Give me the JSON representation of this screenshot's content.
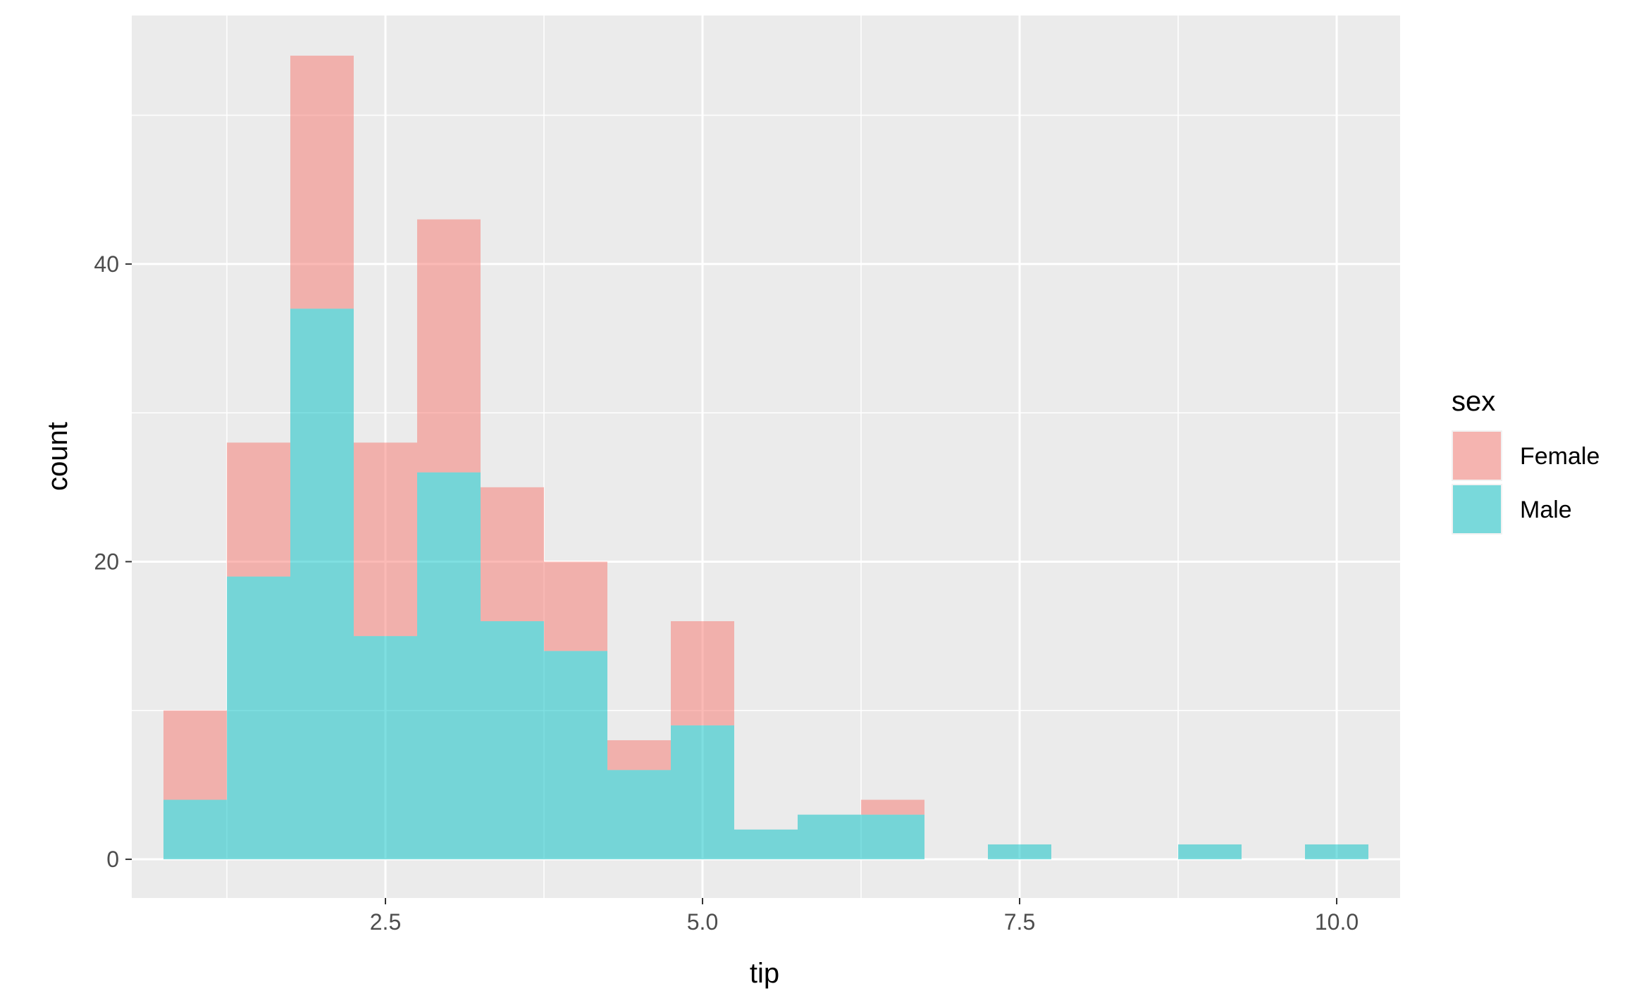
{
  "chart_data": {
    "type": "bar",
    "stacked": true,
    "histogram": true,
    "bin_width": 0.5,
    "bin_centers": [
      1.0,
      1.5,
      2.0,
      2.5,
      3.0,
      3.5,
      4.0,
      4.5,
      5.0,
      5.5,
      6.0,
      6.5,
      7.0,
      7.5,
      8.0,
      8.5,
      9.0,
      9.5,
      10.0
    ],
    "series": [
      {
        "name": "Male",
        "color": "#00BFC4",
        "values": [
          4,
          19,
          37,
          15,
          26,
          16,
          14,
          6,
          9,
          2,
          3,
          3,
          0,
          1,
          0,
          0,
          1,
          0,
          1
        ]
      },
      {
        "name": "Female",
        "color": "#F8766D",
        "values": [
          6,
          9,
          17,
          13,
          17,
          9,
          6,
          2,
          7,
          0,
          0,
          1,
          0,
          0,
          0,
          0,
          0,
          0,
          0
        ]
      }
    ],
    "xlabel": "tip",
    "ylabel": "count",
    "xlim": [
      0.5,
      10.5
    ],
    "ylim": [
      -2.6,
      56.7
    ],
    "x_ticks": [
      2.5,
      5.0,
      7.5,
      10.0
    ],
    "x_tick_labels": [
      "2.5",
      "5.0",
      "7.5",
      "10.0"
    ],
    "y_ticks": [
      0,
      20,
      40
    ],
    "y_tick_labels": [
      "0",
      "20",
      "40"
    ],
    "x_minor_ticks": [
      1.25,
      3.75,
      6.25,
      8.75
    ],
    "y_minor_ticks": [
      10,
      30,
      50
    ],
    "grid": true,
    "panel_background": "#EBEBEB",
    "legend": {
      "title": "sex",
      "position": "right",
      "entries": [
        {
          "label": "Female",
          "color": "#F8766D"
        },
        {
          "label": "Male",
          "color": "#00BFC4"
        }
      ]
    },
    "bar_opacity": 0.5
  }
}
